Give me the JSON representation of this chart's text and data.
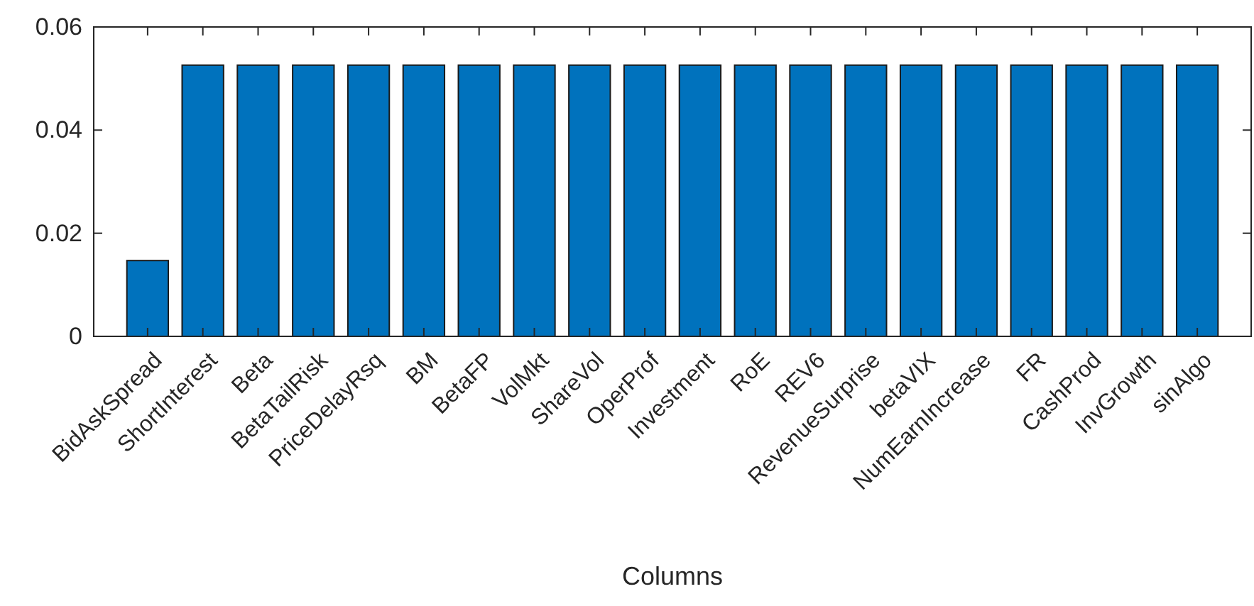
{
  "chart_data": {
    "type": "bar",
    "xlabel": "Columns",
    "categories": [
      "BidAskSpread",
      "ShortInterest",
      "Beta",
      "BetaTailRisk",
      "PriceDelayRsq",
      "BM",
      "BetaFP",
      "VolMkt",
      "ShareVol",
      "OperProf",
      "Investment",
      "RoE",
      "REV6",
      "RevenueSurprise",
      "betaVIX",
      "NumEarnIncrease",
      "FR",
      "CashProd",
      "InvGrowth",
      "sinAlgo"
    ],
    "values": [
      0.0147,
      0.0526,
      0.0526,
      0.0526,
      0.0526,
      0.0526,
      0.0526,
      0.0526,
      0.0526,
      0.0526,
      0.0526,
      0.0526,
      0.0526,
      0.0526,
      0.0526,
      0.0526,
      0.0526,
      0.0526,
      0.0526,
      0.0526
    ],
    "color": "#0072bd",
    "ylim": [
      0,
      0.06
    ],
    "yticks": [
      0,
      0.02,
      0.04,
      0.06
    ],
    "grid": false
  }
}
